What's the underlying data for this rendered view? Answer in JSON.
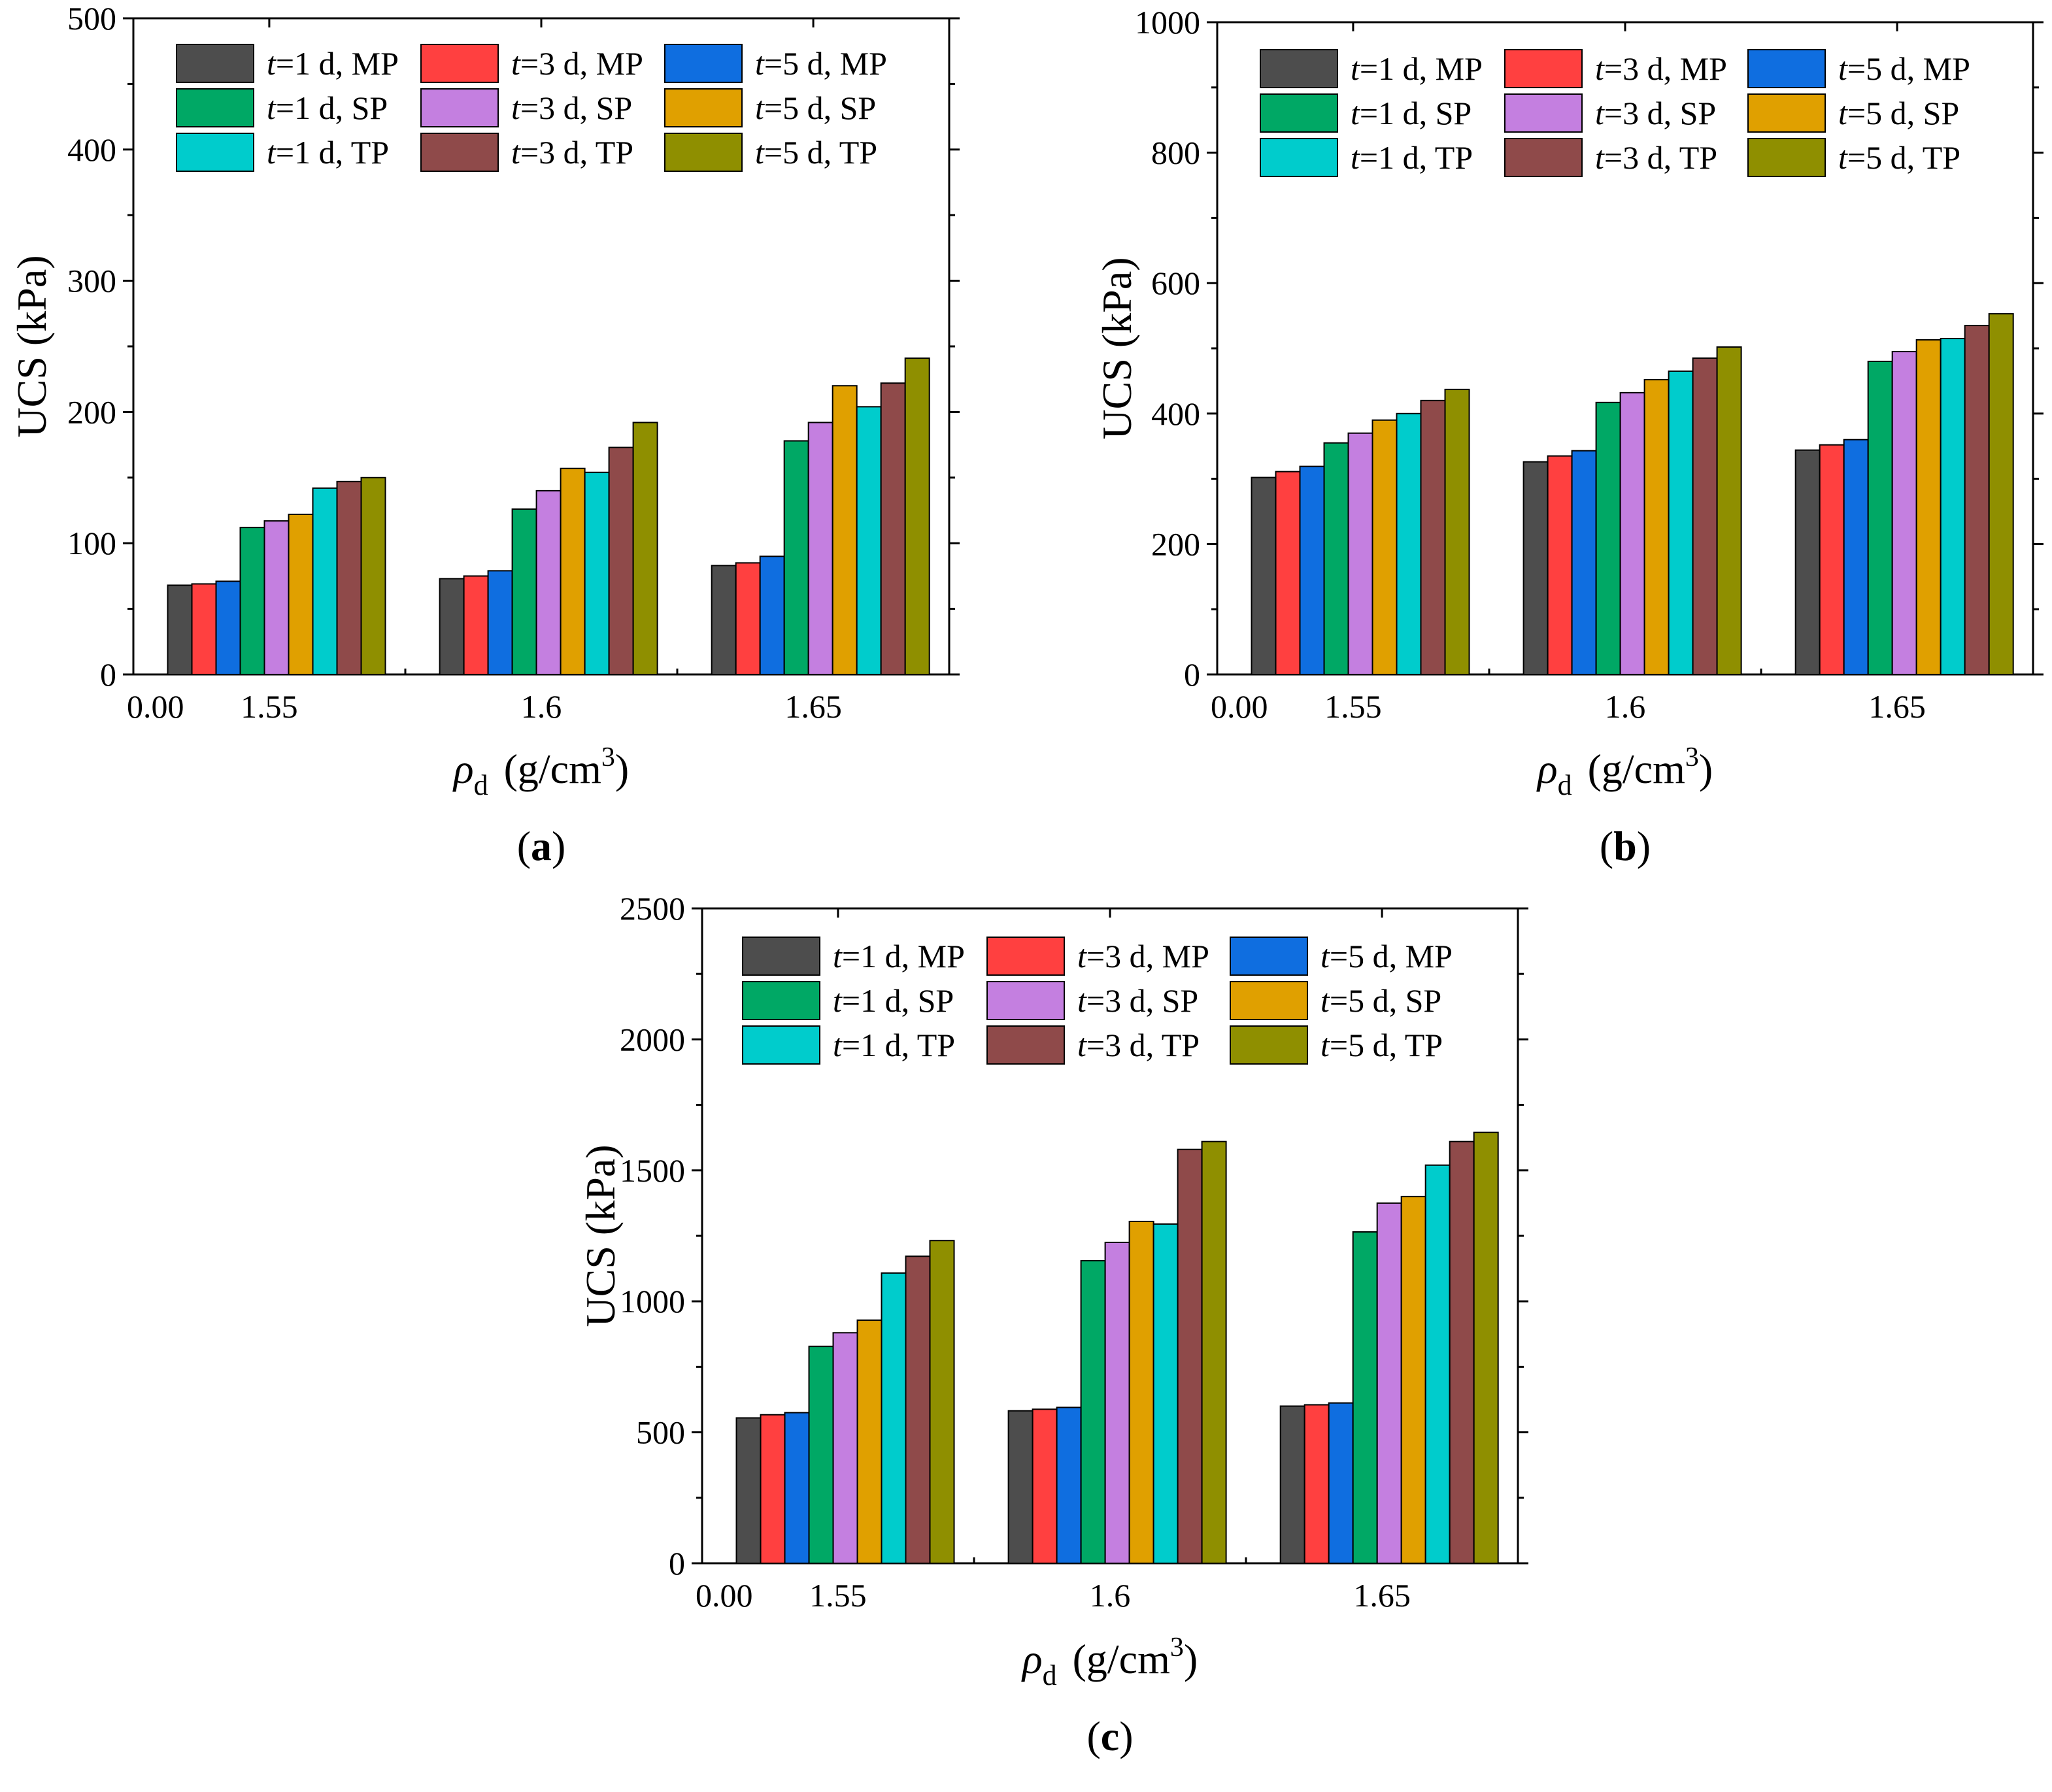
{
  "figure": {
    "legend_order": [
      "MP1",
      "MP3",
      "MP5",
      "SP1",
      "SP3",
      "SP5",
      "TP1",
      "TP3",
      "TP5"
    ],
    "series_styles": [
      {
        "key": "MP1",
        "t": "t",
        "rest": "=1 d, MP",
        "color": "#4d4d4d",
        "edge": "#000000"
      },
      {
        "key": "MP3",
        "t": "t",
        "rest": "=3 d, MP",
        "color": "#ff4040",
        "edge": "#000000"
      },
      {
        "key": "MP5",
        "t": "t",
        "rest": "=5 d, MP",
        "color": "#0f6ee0",
        "edge": "#000000"
      },
      {
        "key": "SP1",
        "t": "t",
        "rest": "=1 d, SP",
        "color": "#00a865",
        "edge": "#000000"
      },
      {
        "key": "SP3",
        "t": "t",
        "rest": "=3 d, SP",
        "color": "#c47fe0",
        "edge": "#000000"
      },
      {
        "key": "SP5",
        "t": "t",
        "rest": "=5 d, SP",
        "color": "#e0a000",
        "edge": "#000000"
      },
      {
        "key": "TP1",
        "t": "t",
        "rest": "=1 d, TP",
        "color": "#00cccc",
        "edge": "#000000"
      },
      {
        "key": "TP3",
        "t": "t",
        "rest": "=3 d, TP",
        "color": "#8f4a4a",
        "edge": "#000000"
      },
      {
        "key": "TP5",
        "t": "t",
        "rest": "=5 d, TP",
        "color": "#8f8f00",
        "edge": "#000000"
      }
    ]
  },
  "chart_data": [
    {
      "type": "bar",
      "panel_label": {
        "open": "(",
        "letter": "a",
        "close": ")"
      },
      "ylabel": "UCS (kPa)",
      "xlabel": {
        "symbol": "ρ",
        "sub": "d",
        "units": "(g/cm",
        "sup": "3",
        "close": ")"
      },
      "ylim": [
        0,
        500
      ],
      "yticks": [
        "0",
        "100",
        "200",
        "300",
        "400",
        "500"
      ],
      "x_origin_label": "0.00",
      "categories": [
        "1.55",
        "1.6",
        "1.65"
      ],
      "series": [
        {
          "name": "t=1 d, MP",
          "values": [
            68,
            73,
            83
          ]
        },
        {
          "name": "t=3 d, MP",
          "values": [
            69,
            75,
            85
          ]
        },
        {
          "name": "t=5 d, MP",
          "values": [
            71,
            79,
            90
          ]
        },
        {
          "name": "t=1 d, SP",
          "values": [
            112,
            126,
            178
          ]
        },
        {
          "name": "t=3 d, SP",
          "values": [
            117,
            140,
            192
          ]
        },
        {
          "name": "t=5 d, SP",
          "values": [
            122,
            157,
            220
          ]
        },
        {
          "name": "t=1 d, TP",
          "values": [
            142,
            154,
            204
          ]
        },
        {
          "name": "t=3 d, TP",
          "values": [
            147,
            173,
            222
          ]
        },
        {
          "name": "t=5 d, TP",
          "values": [
            150,
            192,
            241
          ]
        }
      ]
    },
    {
      "type": "bar",
      "panel_label": {
        "open": "(",
        "letter": "b",
        "close": ")"
      },
      "ylabel": "UCS (kPa)",
      "xlabel": {
        "symbol": "ρ",
        "sub": "d",
        "units": "(g/cm",
        "sup": "3",
        "close": ")"
      },
      "ylim": [
        0,
        1000
      ],
      "yticks": [
        "0",
        "200",
        "400",
        "600",
        "800",
        "1000"
      ],
      "x_origin_label": "0.00",
      "categories": [
        "1.55",
        "1.6",
        "1.65"
      ],
      "series": [
        {
          "name": "t=1 d, MP",
          "values": [
            302,
            326,
            344
          ]
        },
        {
          "name": "t=3 d, MP",
          "values": [
            311,
            335,
            352
          ]
        },
        {
          "name": "t=5 d, MP",
          "values": [
            319,
            343,
            360
          ]
        },
        {
          "name": "t=1 d, SP",
          "values": [
            355,
            417,
            480
          ]
        },
        {
          "name": "t=3 d, SP",
          "values": [
            370,
            432,
            495
          ]
        },
        {
          "name": "t=5 d, SP",
          "values": [
            390,
            452,
            513
          ]
        },
        {
          "name": "t=1 d, TP",
          "values": [
            400,
            465,
            515
          ]
        },
        {
          "name": "t=3 d, TP",
          "values": [
            420,
            485,
            535
          ]
        },
        {
          "name": "t=5 d, TP",
          "values": [
            437,
            502,
            553
          ]
        }
      ]
    },
    {
      "type": "bar",
      "panel_label": {
        "open": "(",
        "letter": "c",
        "close": ")"
      },
      "ylabel": "UCS (kPa)",
      "xlabel": {
        "symbol": "ρ",
        "sub": "d",
        "units": "(g/cm",
        "sup": "3",
        "close": ")"
      },
      "ylim": [
        0,
        2500
      ],
      "yticks": [
        "0",
        "500",
        "1000",
        "1500",
        "2000",
        "2500"
      ],
      "x_origin_label": "0.00",
      "categories": [
        "1.55",
        "1.6",
        "1.65"
      ],
      "series": [
        {
          "name": "t=1 d, MP",
          "values": [
            555,
            582,
            600
          ]
        },
        {
          "name": "t=3 d, MP",
          "values": [
            567,
            588,
            605
          ]
        },
        {
          "name": "t=5 d, MP",
          "values": [
            575,
            595,
            612
          ]
        },
        {
          "name": "t=1 d, SP",
          "values": [
            828,
            1155,
            1265
          ]
        },
        {
          "name": "t=3 d, SP",
          "values": [
            880,
            1225,
            1375
          ]
        },
        {
          "name": "t=5 d, SP",
          "values": [
            928,
            1305,
            1400
          ]
        },
        {
          "name": "t=1 d, TP",
          "values": [
            1108,
            1295,
            1520
          ]
        },
        {
          "name": "t=3 d, TP",
          "values": [
            1172,
            1580,
            1610
          ]
        },
        {
          "name": "t=5 d, TP",
          "values": [
            1232,
            1610,
            1645
          ]
        }
      ]
    }
  ]
}
